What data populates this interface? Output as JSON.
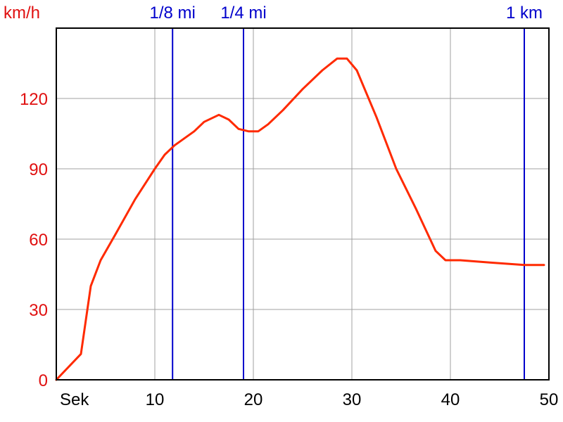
{
  "chart_data": {
    "type": "line",
    "ylabel": "km/h",
    "xlabel": "Sek",
    "xlim": [
      0,
      50
    ],
    "ylim": [
      0,
      150
    ],
    "x_ticks": [
      10,
      20,
      30,
      40,
      50
    ],
    "y_ticks": [
      0,
      30,
      60,
      90,
      120
    ],
    "grid": true,
    "series": [
      {
        "x": [
          0,
          2.5,
          3.5,
          4.5,
          6,
          8,
          10,
          11,
          12,
          13,
          14,
          15,
          16.5,
          17.5,
          18.5,
          19.5,
          20.5,
          21.5,
          23,
          25,
          27,
          28.5,
          29.5,
          30.5,
          32.5,
          34.5,
          36.5,
          38.5,
          39.5,
          41,
          44,
          47.5,
          49.5
        ],
        "y": [
          0,
          11,
          40,
          51,
          62,
          77,
          90,
          96,
          100,
          103,
          106,
          110,
          113,
          111,
          107,
          106,
          106,
          109,
          115,
          124,
          132,
          137,
          137,
          132,
          112,
          90,
          73,
          55,
          51,
          51,
          50,
          49,
          49
        ]
      }
    ],
    "markers": [
      {
        "label": "1/8 mi",
        "x": 11.8
      },
      {
        "label": "1/4 mi",
        "x": 19
      },
      {
        "label": "1 km",
        "x": 47.5
      }
    ],
    "colors": {
      "line": "#ff2a00",
      "axis_labels": "#e01010",
      "markers": "#0000cc",
      "grid": "#a0a0a0",
      "frame": "#000000"
    }
  }
}
